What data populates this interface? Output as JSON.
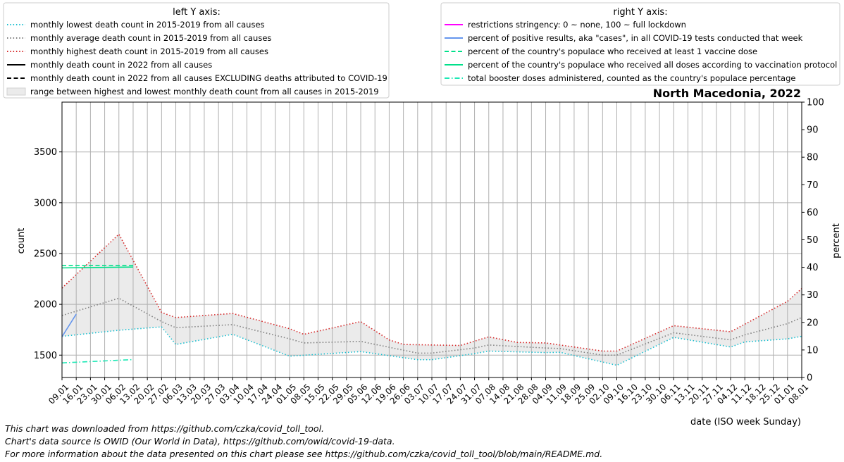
{
  "chart_data": {
    "type": "line",
    "title": "North Macedonia, 2022",
    "xlabel": "date (ISO week Sunday)",
    "ylabel_left": "count",
    "ylabel_right": "percent",
    "ylim_left": [
      1280,
      3990
    ],
    "ylim_right": [
      0,
      100
    ],
    "yticks_left": [
      1500,
      2000,
      2500,
      3000,
      3500
    ],
    "yticks_right": [
      0,
      10,
      20,
      30,
      40,
      50,
      60,
      70,
      80,
      90,
      100
    ],
    "grid": true,
    "x": [
      "09.01",
      "16.01",
      "23.01",
      "30.01",
      "06.02",
      "13.02",
      "20.02",
      "27.02",
      "06.03",
      "13.03",
      "20.03",
      "27.03",
      "03.04",
      "10.04",
      "17.04",
      "24.04",
      "01.05",
      "08.05",
      "15.05",
      "22.05",
      "29.05",
      "05.06",
      "12.06",
      "19.06",
      "26.06",
      "03.07",
      "10.07",
      "17.07",
      "24.07",
      "31.07",
      "07.08",
      "14.08",
      "21.08",
      "28.08",
      "04.09",
      "11.09",
      "18.09",
      "25.09",
      "02.10",
      "09.10",
      "16.10",
      "23.10",
      "30.10",
      "06.11",
      "13.11",
      "20.11",
      "27.11",
      "04.12",
      "11.12",
      "18.12",
      "25.12",
      "01.01",
      "08.01"
    ],
    "legend_left": {
      "title": "left Y axis:",
      "entries": [
        "monthly lowest death count in 2015-2019 from all causes",
        "monthly average death count in 2015-2019 from all causes",
        "monthly highest death count in 2015-2019 from all causes",
        "monthly death count in 2022 from all causes",
        "monthly death count in 2022 from all causes EXCLUDING deaths attributed to COVID-19",
        "range between highest and lowest monthly death count from all causes in 2015-2019"
      ]
    },
    "legend_right": {
      "title": "right Y axis:",
      "entries": [
        "restrictions stringency: 0 ~ none, 100 ~ full lockdown",
        "percent of positive results, aka \"cases\", in all COVID-19 tests conducted that week",
        "percent of the country's populace who received at least 1 vaccine dose",
        "percent of the country's populace who received all doses according to vaccination protocol",
        "total booster doses administered, counted as the country's populace percentage"
      ]
    },
    "series": [
      {
        "name": "monthly lowest death count in 2015-2019 from all causes",
        "axis": "left",
        "color": "#17becf",
        "style": "dotted",
        "points": [
          [
            0,
            1685
          ],
          [
            4,
            1745
          ],
          [
            7,
            1778
          ],
          [
            8,
            1605
          ],
          [
            12,
            1705
          ],
          [
            16,
            1490
          ],
          [
            21,
            1535
          ],
          [
            25,
            1455
          ],
          [
            26,
            1455
          ],
          [
            29,
            1515
          ],
          [
            30,
            1540
          ],
          [
            34,
            1525
          ],
          [
            35,
            1528
          ],
          [
            39,
            1400
          ],
          [
            43,
            1675
          ],
          [
            47,
            1580
          ],
          [
            48,
            1630
          ],
          [
            51,
            1660
          ],
          [
            52,
            1685
          ]
        ]
      },
      {
        "name": "monthly average death count in 2015-2019 from all causes",
        "axis": "left",
        "color": "#7f7f7f",
        "style": "dotted",
        "points": [
          [
            0,
            1890
          ],
          [
            4,
            2060
          ],
          [
            7,
            1830
          ],
          [
            8,
            1770
          ],
          [
            12,
            1800
          ],
          [
            16,
            1660
          ],
          [
            17,
            1620
          ],
          [
            21,
            1635
          ],
          [
            25,
            1520
          ],
          [
            26,
            1520
          ],
          [
            29,
            1570
          ],
          [
            30,
            1600
          ],
          [
            34,
            1570
          ],
          [
            35,
            1565
          ],
          [
            38,
            1500
          ],
          [
            39,
            1500
          ],
          [
            43,
            1720
          ],
          [
            47,
            1650
          ],
          [
            48,
            1700
          ],
          [
            51,
            1810
          ],
          [
            52,
            1870
          ]
        ]
      },
      {
        "name": "monthly highest death count in 2015-2019 from all causes",
        "axis": "left",
        "color": "#d62728",
        "style": "dotted",
        "points": [
          [
            0,
            2160
          ],
          [
            4,
            2690
          ],
          [
            7,
            1920
          ],
          [
            8,
            1870
          ],
          [
            12,
            1910
          ],
          [
            16,
            1760
          ],
          [
            17,
            1705
          ],
          [
            21,
            1830
          ],
          [
            23,
            1650
          ],
          [
            24,
            1605
          ],
          [
            26,
            1600
          ],
          [
            28,
            1595
          ],
          [
            30,
            1680
          ],
          [
            32,
            1625
          ],
          [
            34,
            1620
          ],
          [
            38,
            1540
          ],
          [
            39,
            1540
          ],
          [
            43,
            1790
          ],
          [
            47,
            1730
          ],
          [
            51,
            2030
          ],
          [
            52,
            2155
          ]
        ]
      },
      {
        "name": "percent of positive results, aka \"cases\", in all COVID-19 tests conducted that week",
        "axis": "right",
        "color": "#6495ed",
        "style": "solid",
        "points": [
          [
            0,
            14.8
          ],
          [
            1,
            23.0
          ]
        ]
      },
      {
        "name": "percent of the country's populace who received at least 1 vaccine dose",
        "axis": "right",
        "color": "#00e08a",
        "style": "dashed",
        "points": [
          [
            0,
            40.6
          ],
          [
            5,
            40.7
          ]
        ]
      },
      {
        "name": "percent of the country's populace who received all doses according to vaccination protocol",
        "axis": "right",
        "color": "#00e08a",
        "style": "solid",
        "points": [
          [
            0,
            39.8
          ],
          [
            5,
            40.1
          ]
        ]
      },
      {
        "name": "total booster doses administered, counted as the country's populace percentage",
        "axis": "right",
        "color": "#1de8b5",
        "style": "dashdot",
        "points": [
          [
            0,
            5.3
          ],
          [
            5,
            6.5
          ]
        ]
      }
    ]
  },
  "legend_colors": {
    "stringency": "#ff00ff",
    "positivity": "#6495ed",
    "vaccine_one": "#00e08a",
    "vaccine_full": "#00e08a",
    "booster": "#1de8b5",
    "lowest": "#17becf",
    "average": "#7f7f7f",
    "highest": "#d62728",
    "deaths": "#000000",
    "range_fill": "#ebebeb"
  },
  "footer": {
    "line1": "This chart was downloaded from https://github.com/czka/covid_toll_tool.",
    "line2": "Chart's data source is OWID (Our World in Data), https://github.com/owid/covid-19-data.",
    "line3": "For more information about the data presented on this chart please see https://github.com/czka/covid_toll_tool/blob/main/README.md."
  }
}
